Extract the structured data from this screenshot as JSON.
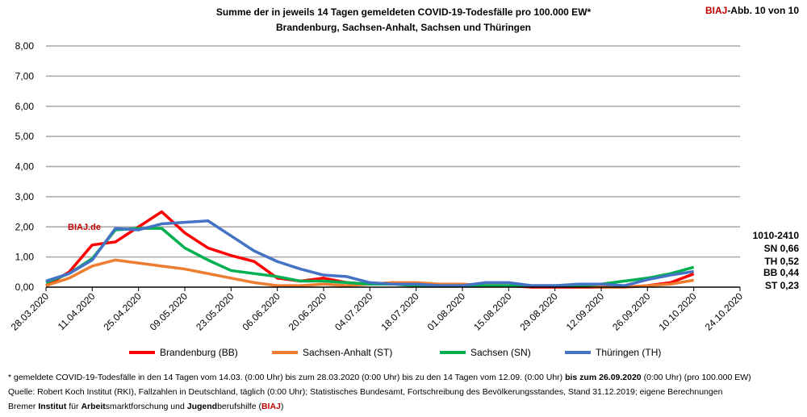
{
  "header": {
    "title_line1": "Summe der in jeweils 14 Tagen gemeldeten COVID-19-Todesfälle pro 100.000 EW*",
    "title_line2": "Brandenburg, Sachsen-Anhalt, Sachsen und Thüringen",
    "abb_brand": "BIAJ",
    "abb_rest": "-Abb. 10 von 10"
  },
  "watermark": "BIAJ.de",
  "annotations": {
    "period": "1010-2410",
    "sn": "SN 0,66",
    "th": "TH 0,52",
    "bb": "BB 0,44",
    "st": "ST 0,23"
  },
  "footer": {
    "line1_a": "* gemeldete COVID-19-Todesfälle in den 14 Tagen vom 14.03. (0:00 Uhr) bis zum 28.03.2020 (0:00 Uhr) bis zu den 14 Tagen vom 12.09. (0:00 Uhr) ",
    "line1_b": "bis zum 26.09.2020",
    "line1_c": " (0:00 Uhr) (pro 100.000 EW)",
    "line2": "Quelle: Robert Koch Institut (RKI), Fallzahlen in Deutschland, täglich (0:00 Uhr); Statistisches Bundesamt, Fortschreibung des Bevölkerungsstandes, Stand 31.12.2019; eigene Berechnungen",
    "line3_parts": [
      "Bremer ",
      "Institut",
      " für ",
      "Arbeit",
      "smarktforschung und ",
      "Jugend",
      "berufshilfe (",
      "BIAJ",
      ")"
    ]
  },
  "chart_data": {
    "type": "line",
    "title": "Summe der in jeweils 14 Tagen gemeldeten COVID-19-Todesfälle pro 100.000 EW*",
    "ylim": [
      0,
      8
    ],
    "yticks": [
      "0,00",
      "1,00",
      "2,00",
      "3,00",
      "4,00",
      "5,00",
      "6,00",
      "7,00",
      "8,00"
    ],
    "xticks": [
      "28.03.2020",
      "11.04.2020",
      "25.04.2020",
      "09.05.2020",
      "23.05.2020",
      "06.06.2020",
      "20.06.2020",
      "04.07.2020",
      "18.07.2020",
      "01.08.2020",
      "15.08.2020",
      "29.08.2020",
      "12.09.2020",
      "26.09.2020",
      "10.10.2020",
      "24.10.2020"
    ],
    "x_step_days": 7,
    "grid": true,
    "legend_position": "bottom",
    "series": [
      {
        "name": "Brandenburg (BB)",
        "color": "#ff0000",
        "values": [
          0.05,
          0.5,
          1.4,
          1.5,
          2.0,
          2.5,
          1.8,
          1.3,
          1.05,
          0.85,
          0.3,
          0.2,
          0.3,
          0.15,
          0.1,
          0.15,
          0.05,
          0.05,
          0.05,
          0.05,
          0.05,
          0.0,
          0.0,
          0.0,
          0.0,
          0.0,
          0.05,
          0.15,
          0.44
        ]
      },
      {
        "name": "Sachsen-Anhalt (ST)",
        "color": "#ed7d31",
        "values": [
          0.05,
          0.3,
          0.7,
          0.9,
          0.8,
          0.7,
          0.6,
          0.45,
          0.3,
          0.15,
          0.05,
          0.05,
          0.1,
          0.05,
          0.1,
          0.15,
          0.15,
          0.1,
          0.1,
          0.05,
          0.05,
          0.05,
          0.05,
          0.05,
          0.0,
          0.0,
          0.05,
          0.1,
          0.23
        ]
      },
      {
        "name": "Sachsen (SN)",
        "color": "#00b050",
        "values": [
          0.15,
          0.45,
          0.95,
          1.9,
          1.95,
          1.95,
          1.3,
          0.9,
          0.55,
          0.45,
          0.35,
          0.2,
          0.2,
          0.15,
          0.1,
          0.1,
          0.05,
          0.05,
          0.05,
          0.05,
          0.05,
          0.05,
          0.05,
          0.05,
          0.1,
          0.2,
          0.3,
          0.45,
          0.66
        ]
      },
      {
        "name": "Thüringen (TH)",
        "color": "#4472c4",
        "values": [
          0.2,
          0.45,
          0.9,
          1.95,
          1.9,
          2.1,
          2.15,
          2.2,
          1.7,
          1.2,
          0.85,
          0.6,
          0.4,
          0.35,
          0.15,
          0.1,
          0.1,
          0.05,
          0.05,
          0.15,
          0.15,
          0.05,
          0.05,
          0.1,
          0.1,
          0.05,
          0.25,
          0.4,
          0.52
        ]
      }
    ]
  }
}
